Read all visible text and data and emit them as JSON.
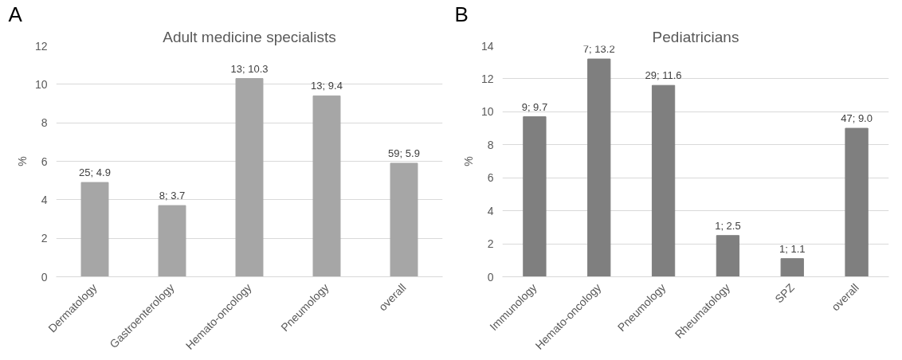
{
  "chart_data": [
    {
      "type": "bar",
      "title": "Adult medicine specialists",
      "ylabel": "%",
      "annotations": [
        "A"
      ],
      "categories": [
        "Dermatology",
        "Gastroenterology",
        "Hemato-oncology",
        "Pneumology",
        "overall"
      ],
      "values": [
        4.9,
        3.7,
        10.3,
        9.4,
        5.9
      ],
      "color": "#a6a6a6",
      "value_labels": [
        "25; 4.9",
        "8; 3.7",
        "13; 10.3",
        "13; 9.4",
        "59; 5.9"
      ],
      "ylim": [
        0,
        12
      ],
      "yticks": [
        0,
        2,
        4,
        6,
        8,
        10,
        12
      ],
      "grid": "y"
    },
    {
      "type": "bar",
      "title": "Pediatricians",
      "ylabel": "%",
      "annotations": [
        "B"
      ],
      "categories": [
        "Immunology",
        "Hemato-oncology",
        "Pneumology",
        "Rheumatology",
        "SPZ",
        "overall"
      ],
      "values": [
        9.7,
        13.2,
        11.6,
        2.5,
        1.1,
        9.0
      ],
      "color": "#7f7f7f",
      "value_labels": [
        "9; 9.7",
        "7; 13.2",
        "29; 11.6",
        "1; 2.5",
        "1; 1.1",
        "47; 9.0"
      ],
      "ylim": [
        0,
        14
      ],
      "yticks": [
        0,
        2,
        4,
        6,
        8,
        10,
        12,
        14
      ],
      "grid": "y"
    }
  ]
}
